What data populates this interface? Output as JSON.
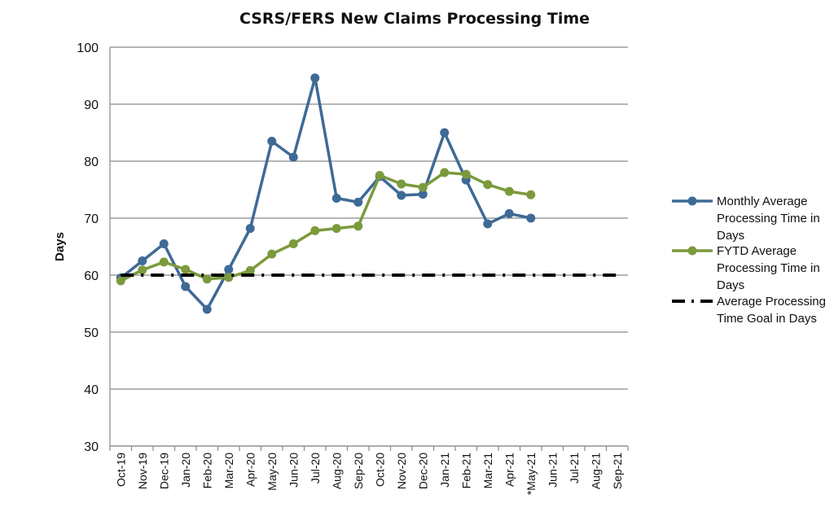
{
  "chart_data": {
    "type": "line",
    "title": "CSRS/FERS New Claims Processing Time",
    "ylabel": "Days",
    "xlabel": "",
    "ylim": [
      30,
      100
    ],
    "yticks": [
      30,
      40,
      50,
      60,
      70,
      80,
      90,
      100
    ],
    "grid": "horizontal",
    "legend_position": "right",
    "categories": [
      "Oct-19",
      "Nov-19",
      "Dec-19",
      "Jan-20",
      "Feb-20",
      "Mar-20",
      "Apr-20",
      "May-20",
      "Jun-20",
      "Jul-20",
      "Aug-20",
      "Sep-20",
      "Oct-20",
      "Nov-20",
      "Dec-20",
      "Jan-21",
      "Feb-21",
      "Mar-21",
      "Apr-21",
      "*May-21",
      "Jun-21",
      "Jul-21",
      "Aug-21",
      "Sep-21"
    ],
    "series": [
      {
        "name": "Monthly Average Processing Time in Days",
        "legend_lines": [
          "Monthly Average",
          "Processing Time in",
          "Days"
        ],
        "color": "#3e6a96",
        "style": "solid-markers",
        "values": [
          59.5,
          62.5,
          65.5,
          58,
          54,
          61,
          68.2,
          83.5,
          80.7,
          94.6,
          73.5,
          72.8,
          77.3,
          74,
          74.2,
          85,
          76.7,
          69,
          70.8,
          70,
          null,
          null,
          null,
          null
        ]
      },
      {
        "name": "FYTD Average Processing Time in Days",
        "legend_lines": [
          "FYTD Average",
          "Processing Time in",
          "Days"
        ],
        "color": "#7b9a3c",
        "style": "solid-markers",
        "values": [
          59,
          60.9,
          62.3,
          61,
          59.3,
          59.6,
          60.8,
          63.7,
          65.5,
          67.8,
          68.2,
          68.6,
          77.5,
          76,
          75.4,
          78,
          77.7,
          75.9,
          74.7,
          74.1,
          null,
          null,
          null,
          null
        ]
      },
      {
        "name": "Average Processing Time Goal in Days",
        "legend_lines": [
          "Average Processing",
          "Time Goal in Days"
        ],
        "color": "#000000",
        "style": "dash-dot",
        "values": [
          60,
          60,
          60,
          60,
          60,
          60,
          60,
          60,
          60,
          60,
          60,
          60,
          60,
          60,
          60,
          60,
          60,
          60,
          60,
          60,
          60,
          60,
          60,
          60
        ]
      }
    ]
  }
}
